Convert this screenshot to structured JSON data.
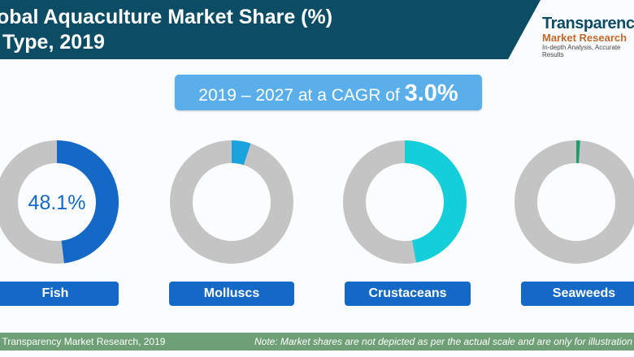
{
  "title": "obal Aquaculture Market Share (%)\n Type, 2019",
  "logo": {
    "line1": "Transparenc",
    "line2": "Market Research",
    "tagline": "In-depth Analysis, Accurate Results"
  },
  "cagr": {
    "prefix": "2019 – 2027 at a CAGR of ",
    "value": "3.0%"
  },
  "footer": {
    "source": ": Transparency Market Research, 2019",
    "note": "Note: Market shares are not depicted as per the actual scale and are only for illustration p"
  },
  "chart_data": {
    "type": "pie",
    "title": "obal Aquaculture Market Share (%) Type, 2019",
    "categories": [
      "Fish",
      "Molluscs",
      "Crustaceans",
      "Seaweeds"
    ],
    "values": [
      48.1,
      5,
      47,
      1
    ],
    "labels": [
      "48.1%",
      "",
      "",
      ""
    ],
    "colors": [
      "#1569c6",
      "#1aa3dc",
      "#14cfd9",
      "#1a9e6e"
    ],
    "remainder_color": "#c4c4c4"
  }
}
